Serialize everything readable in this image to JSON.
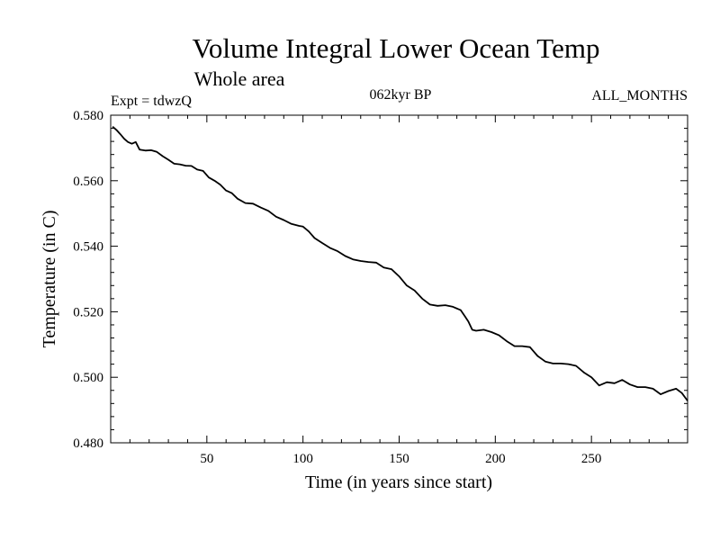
{
  "header": {
    "title": "Volume Integral Lower Ocean Temp",
    "subtitle": "Whole area",
    "expt": "Expt = tdwzQ",
    "period": "062kyr BP",
    "months": "ALL_MONTHS"
  },
  "chart_data": {
    "type": "line",
    "title": "Volume Integral Lower Ocean Temp",
    "subtitle": "Whole area",
    "xlabel": "Time (in years since start)",
    "ylabel": "Temperature (in C)",
    "xlim": [
      0,
      300
    ],
    "ylim": [
      0.48,
      0.58
    ],
    "x_ticks": [
      50,
      100,
      150,
      200,
      250
    ],
    "x_tick_labels": [
      "50",
      "100",
      "150",
      "200",
      "250"
    ],
    "y_ticks": [
      0.48,
      0.5,
      0.52,
      0.54,
      0.56,
      0.58
    ],
    "y_tick_labels": [
      "0.480",
      "0.500",
      "0.520",
      "0.540",
      "0.560",
      "0.580"
    ],
    "grid": false,
    "series": [
      {
        "color": "#000000",
        "points": [
          [
            1,
            0.5765
          ],
          [
            3,
            0.5755
          ],
          [
            5,
            0.5742
          ],
          [
            7,
            0.5728
          ],
          [
            9,
            0.5718
          ],
          [
            11,
            0.5713
          ],
          [
            13,
            0.5718
          ],
          [
            15,
            0.5695
          ],
          [
            18,
            0.5692
          ],
          [
            21,
            0.5693
          ],
          [
            24,
            0.5688
          ],
          [
            27,
            0.5675
          ],
          [
            30,
            0.5664
          ],
          [
            33,
            0.5652
          ],
          [
            36,
            0.565
          ],
          [
            39,
            0.5646
          ],
          [
            42,
            0.5645
          ],
          [
            45,
            0.5634
          ],
          [
            48,
            0.563
          ],
          [
            51,
            0.561
          ],
          [
            54,
            0.56
          ],
          [
            57,
            0.5588
          ],
          [
            60,
            0.557
          ],
          [
            63,
            0.5562
          ],
          [
            66,
            0.5545
          ],
          [
            70,
            0.5532
          ],
          [
            74,
            0.553
          ],
          [
            78,
            0.5518
          ],
          [
            82,
            0.5508
          ],
          [
            86,
            0.549
          ],
          [
            90,
            0.548
          ],
          [
            94,
            0.5468
          ],
          [
            98,
            0.5462
          ],
          [
            100,
            0.546
          ],
          [
            103,
            0.5445
          ],
          [
            106,
            0.5425
          ],
          [
            110,
            0.541
          ],
          [
            114,
            0.5395
          ],
          [
            118,
            0.5385
          ],
          [
            122,
            0.537
          ],
          [
            126,
            0.536
          ],
          [
            130,
            0.5355
          ],
          [
            134,
            0.5352
          ],
          [
            138,
            0.535
          ],
          [
            142,
            0.5335
          ],
          [
            146,
            0.533
          ],
          [
            150,
            0.5308
          ],
          [
            154,
            0.528
          ],
          [
            158,
            0.5265
          ],
          [
            162,
            0.524
          ],
          [
            166,
            0.5222
          ],
          [
            170,
            0.5218
          ],
          [
            174,
            0.522
          ],
          [
            178,
            0.5215
          ],
          [
            182,
            0.5205
          ],
          [
            184,
            0.5188
          ],
          [
            186,
            0.517
          ],
          [
            188,
            0.5145
          ],
          [
            190,
            0.5142
          ],
          [
            194,
            0.5145
          ],
          [
            198,
            0.5138
          ],
          [
            202,
            0.5128
          ],
          [
            206,
            0.511
          ],
          [
            210,
            0.5095
          ],
          [
            214,
            0.5095
          ],
          [
            218,
            0.5092
          ],
          [
            222,
            0.5065
          ],
          [
            226,
            0.5048
          ],
          [
            230,
            0.5042
          ],
          [
            234,
            0.5042
          ],
          [
            238,
            0.504
          ],
          [
            242,
            0.5035
          ],
          [
            246,
            0.5015
          ],
          [
            250,
            0.5
          ],
          [
            254,
            0.4975
          ],
          [
            258,
            0.4985
          ],
          [
            262,
            0.4982
          ],
          [
            266,
            0.4992
          ],
          [
            270,
            0.4978
          ],
          [
            274,
            0.497
          ],
          [
            278,
            0.497
          ],
          [
            282,
            0.4965
          ],
          [
            286,
            0.4948
          ],
          [
            290,
            0.4958
          ],
          [
            294,
            0.4965
          ],
          [
            297,
            0.4952
          ],
          [
            300,
            0.4928
          ]
        ]
      }
    ]
  }
}
